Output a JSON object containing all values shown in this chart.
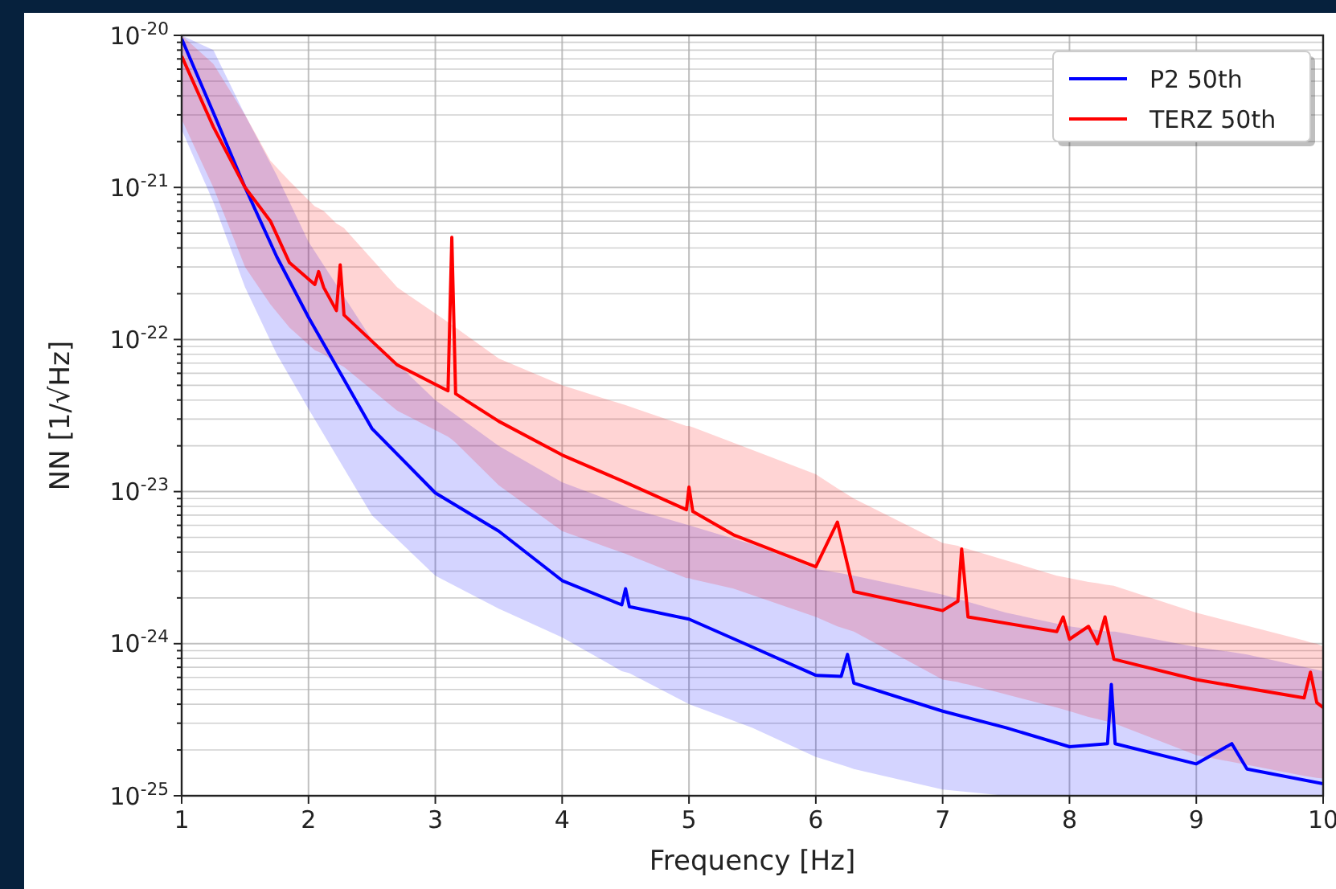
{
  "chart_data": {
    "type": "line",
    "xlabel": "Frequency [Hz]",
    "ylabel": "NN [1/√Hz]",
    "log": "y",
    "grid": true,
    "legend": "top right",
    "line_style": "solid",
    "xlim": [
      1,
      10
    ],
    "xticks": [
      1,
      2,
      3,
      4,
      5,
      6,
      7,
      8,
      9,
      10
    ],
    "ylim": [
      1e-25,
      1e-20
    ],
    "yticks": [
      {
        "value": 1e-25,
        "label": "10$^{-25}$"
      },
      {
        "value": 1e-24,
        "label": "10$^{-24}$"
      },
      {
        "value": 1e-23,
        "label": "10$^{-23}$"
      },
      {
        "value": 1e-22,
        "label": "10$^{-22}$"
      },
      {
        "value": 1e-21,
        "label": "10$^{-21}$"
      },
      {
        "value": 1e-20,
        "label": "10$^{-20}$"
      }
    ],
    "series": [
      {
        "name": "P2 50th",
        "color": "#0000ff",
        "x": [
          1,
          1.25,
          1.5,
          1.75,
          2,
          2.5,
          3,
          3.5,
          4,
          4.47,
          4.5,
          4.53,
          5,
          5.5,
          6,
          6.2,
          6.25,
          6.3,
          7,
          7.5,
          8,
          8.3,
          8.33,
          8.36,
          9,
          9.28,
          9.4,
          10
        ],
        "values": [
          9.5e-21,
          3.1e-21,
          1e-21,
          3.5e-22,
          1.4e-22,
          2.6e-23,
          9.8e-24,
          5.5e-24,
          2.6e-24,
          1.8e-24,
          2.3e-24,
          1.75e-24,
          1.45e-24,
          9.5e-25,
          6.2e-25,
          6.1e-25,
          8.5e-25,
          5.5e-25,
          3.6e-25,
          2.8e-25,
          2.1e-25,
          2.2e-25,
          5.4e-25,
          2.2e-25,
          1.62e-25,
          2.2e-25,
          1.5e-25,
          1.2e-25
        ],
        "lower": [
          2.4e-21,
          8e-22,
          2.2e-22,
          8e-23,
          3.5e-23,
          7e-24,
          2.8e-24,
          1.7e-24,
          1.1e-24,
          6.6e-25,
          6.5e-25,
          6.4e-25,
          4e-25,
          2.8e-25,
          1.8e-25,
          1.6e-25,
          1.55e-25,
          1.5e-25,
          1.1e-25,
          1e-25,
          1e-25,
          1e-25,
          1e-25,
          1e-25,
          1e-25,
          1e-25,
          1e-25,
          1e-25
        ],
        "upper": [
          1e-20,
          8e-21,
          3e-21,
          1.2e-21,
          4.4e-22,
          1e-22,
          4e-23,
          2e-23,
          1.15e-23,
          8.2e-24,
          8e-24,
          7.8e-24,
          6e-24,
          4.5e-24,
          3.1e-24,
          2.9e-24,
          2.85e-24,
          2.8e-24,
          2.1e-24,
          1.6e-24,
          1.3e-24,
          1.2e-24,
          1.2e-24,
          1.2e-24,
          9.5e-25,
          8.8e-25,
          8.5e-25,
          6.6e-25
        ]
      },
      {
        "name": "TERZ 50th",
        "color": "#ff0000",
        "x": [
          1,
          1.25,
          1.5,
          1.7,
          1.85,
          2.05,
          2.08,
          2.12,
          2.22,
          2.25,
          2.28,
          2.7,
          3.1,
          3.13,
          3.16,
          3.5,
          4,
          4.5,
          4.98,
          5,
          5.03,
          5.35,
          6,
          6.17,
          6.3,
          7,
          7.12,
          7.15,
          7.2,
          7.9,
          7.95,
          8,
          8.15,
          8.22,
          8.28,
          8.35,
          9,
          9.85,
          9.9,
          9.95,
          10
        ],
        "values": [
          7.3e-21,
          2.5e-21,
          1e-21,
          6e-22,
          3.2e-22,
          2.3e-22,
          2.8e-22,
          2.2e-22,
          1.55e-22,
          3.1e-22,
          1.45e-22,
          6.8e-23,
          4.6e-23,
          4.7e-22,
          4.4e-23,
          2.9e-23,
          1.74e-23,
          1.15e-23,
          7.6e-24,
          1.07e-23,
          7.4e-24,
          5.2e-24,
          3.2e-24,
          6.3e-24,
          2.2e-24,
          1.65e-24,
          1.9e-24,
          4.2e-24,
          1.5e-24,
          1.2e-24,
          1.5e-24,
          1.07e-24,
          1.3e-24,
          1e-24,
          1.5e-24,
          7.9e-25,
          5.8e-25,
          4.4e-25,
          6.5e-25,
          4.1e-25,
          3.8e-25
        ],
        "lower": [
          2.8e-21,
          1e-21,
          3e-22,
          1.7e-22,
          1.2e-22,
          8.5e-23,
          8.3e-23,
          8e-23,
          7e-23,
          6.8e-23,
          6.6e-23,
          3.4e-23,
          2.3e-23,
          2.2e-23,
          2.1e-23,
          1.1e-23,
          5.5e-24,
          3.9e-24,
          2.7e-24,
          2.7e-24,
          2.65e-24,
          2.3e-24,
          1.5e-24,
          1.3e-24,
          1.2e-24,
          5.8e-25,
          5.6e-25,
          5.5e-25,
          5.4e-25,
          3.8e-25,
          3.7e-25,
          3.6e-25,
          3.3e-25,
          3.2e-25,
          3.1e-25,
          3e-25,
          1.85e-25,
          1.35e-25,
          1.33e-25,
          1.31e-25,
          1.3e-25
        ],
        "upper": [
          1e-20,
          6.5e-21,
          3e-21,
          1.5e-21,
          1.1e-21,
          7.5e-22,
          7.3e-22,
          7e-22,
          5.8e-22,
          5.6e-22,
          5.4e-22,
          2.2e-22,
          1.3e-22,
          1.25e-22,
          1.2e-22,
          7.5e-23,
          5e-23,
          3.7e-23,
          2.7e-23,
          2.7e-23,
          2.65e-23,
          2.1e-23,
          1.3e-23,
          1.05e-23,
          9e-24,
          4.6e-24,
          4.4e-24,
          4.3e-24,
          4.2e-24,
          2.8e-24,
          2.75e-24,
          2.7e-24,
          2.55e-24,
          2.5e-24,
          2.45e-24,
          2.4e-24,
          1.6e-24,
          1.05e-24,
          1.02e-24,
          1e-24,
          9.6e-25
        ]
      }
    ]
  }
}
